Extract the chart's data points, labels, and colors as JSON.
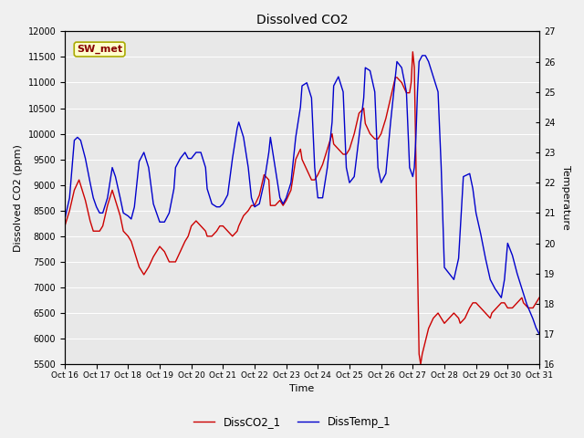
{
  "title": "Dissolved CO2",
  "xlabel": "Time",
  "ylabel_left": "Dissolved CO2 (ppm)",
  "ylabel_right": "Temperature",
  "legend_label": "SW_met",
  "series1_label": "DissCO2_1",
  "series2_label": "DissTemp_1",
  "series1_color": "#cc0000",
  "series2_color": "#0000cc",
  "ylim_left": [
    5500,
    12000
  ],
  "ylim_right": [
    16.0,
    27.0
  ],
  "fig_facecolor": "#f0f0f0",
  "ax_facecolor": "#e8e8e8",
  "legend_box_facecolor": "#ffffcc",
  "legend_box_edgecolor": "#aaaa00",
  "legend_text_color": "#880000",
  "yticks_left": [
    5500,
    6000,
    6500,
    7000,
    7500,
    8000,
    8500,
    9000,
    9500,
    10000,
    10500,
    11000,
    11500,
    12000
  ],
  "yticks_right": [
    16.0,
    17.0,
    18.0,
    19.0,
    20.0,
    21.0,
    22.0,
    23.0,
    24.0,
    25.0,
    26.0,
    27.0
  ],
  "xtick_positions": [
    0,
    1,
    2,
    3,
    4,
    5,
    6,
    7,
    8,
    9,
    10,
    11,
    12,
    13,
    14,
    15
  ],
  "xtick_labels": [
    "Oct 16",
    "Oct 17",
    "Oct 18",
    "Oct 19",
    "Oct 20",
    "Oct 21",
    "Oct 22",
    "Oct 23",
    "Oct 24",
    "Oct 25",
    "Oct 26",
    "Oct 27",
    "Oct 28",
    "Oct 29",
    "Oct 30",
    "Oct 31"
  ],
  "co2_x": [
    0.0,
    0.15,
    0.3,
    0.45,
    0.5,
    0.65,
    0.8,
    0.9,
    1.0,
    1.1,
    1.2,
    1.35,
    1.5,
    1.6,
    1.75,
    1.85,
    2.0,
    2.1,
    2.2,
    2.35,
    2.5,
    2.65,
    2.8,
    2.9,
    3.0,
    3.15,
    3.3,
    3.45,
    3.5,
    3.65,
    3.8,
    3.9,
    4.0,
    4.15,
    4.3,
    4.45,
    4.5,
    4.65,
    4.8,
    4.9,
    5.0,
    5.15,
    5.3,
    5.45,
    5.5,
    5.65,
    5.8,
    5.9,
    6.0,
    6.15,
    6.3,
    6.45,
    6.5,
    6.65,
    6.8,
    6.9,
    7.0,
    7.15,
    7.3,
    7.45,
    7.5,
    7.65,
    7.8,
    7.9,
    8.0,
    8.15,
    8.3,
    8.45,
    8.5,
    8.65,
    8.8,
    8.9,
    9.0,
    9.15,
    9.3,
    9.45,
    9.5,
    9.65,
    9.8,
    9.9,
    10.0,
    10.15,
    10.3,
    10.45,
    10.5,
    10.65,
    10.8,
    10.9,
    10.95,
    11.0,
    11.05,
    11.1,
    11.15,
    11.2,
    11.25,
    11.3,
    11.5,
    11.65,
    11.8,
    11.9,
    12.0,
    12.15,
    12.3,
    12.45,
    12.5,
    12.65,
    12.8,
    12.9,
    13.0,
    13.15,
    13.3,
    13.45,
    13.5,
    13.65,
    13.8,
    13.9,
    14.0,
    14.15,
    14.3,
    14.45,
    14.5,
    14.65,
    14.8,
    14.9,
    15.0
  ],
  "co2_y": [
    8200,
    8500,
    8900,
    9100,
    9000,
    8700,
    8300,
    8100,
    8100,
    8100,
    8200,
    8600,
    8900,
    8700,
    8400,
    8100,
    8000,
    7900,
    7700,
    7400,
    7250,
    7400,
    7600,
    7700,
    7800,
    7700,
    7500,
    7500,
    7500,
    7700,
    7900,
    8000,
    8200,
    8300,
    8200,
    8100,
    8000,
    8000,
    8100,
    8200,
    8200,
    8100,
    8000,
    8100,
    8200,
    8400,
    8500,
    8600,
    8600,
    8800,
    9200,
    9100,
    8600,
    8600,
    8700,
    8600,
    8700,
    8900,
    9500,
    9700,
    9500,
    9300,
    9100,
    9100,
    9200,
    9400,
    9700,
    10000,
    9800,
    9700,
    9600,
    9600,
    9700,
    10000,
    10400,
    10500,
    10200,
    10000,
    9900,
    9900,
    10000,
    10300,
    10700,
    11100,
    11100,
    11000,
    10800,
    10800,
    11000,
    11600,
    11300,
    9500,
    7500,
    5700,
    5500,
    5700,
    6200,
    6400,
    6500,
    6400,
    6300,
    6400,
    6500,
    6400,
    6300,
    6400,
    6600,
    6700,
    6700,
    6600,
    6500,
    6400,
    6500,
    6600,
    6700,
    6700,
    6600,
    6600,
    6700,
    6800,
    6700,
    6600,
    6600,
    6700,
    6800
  ],
  "temp_x": [
    0.0,
    0.15,
    0.3,
    0.4,
    0.5,
    0.65,
    0.8,
    0.9,
    1.0,
    1.1,
    1.2,
    1.35,
    1.5,
    1.6,
    1.75,
    1.85,
    2.0,
    2.1,
    2.2,
    2.35,
    2.5,
    2.65,
    2.8,
    2.9,
    3.0,
    3.15,
    3.3,
    3.45,
    3.5,
    3.65,
    3.8,
    3.9,
    4.0,
    4.15,
    4.3,
    4.45,
    4.5,
    4.65,
    4.8,
    4.9,
    5.0,
    5.15,
    5.3,
    5.45,
    5.5,
    5.65,
    5.8,
    5.9,
    6.0,
    6.15,
    6.3,
    6.45,
    6.5,
    6.65,
    6.8,
    6.9,
    7.0,
    7.15,
    7.3,
    7.45,
    7.5,
    7.65,
    7.8,
    7.9,
    8.0,
    8.15,
    8.3,
    8.45,
    8.5,
    8.65,
    8.8,
    8.9,
    9.0,
    9.15,
    9.3,
    9.45,
    9.5,
    9.65,
    9.8,
    9.9,
    10.0,
    10.15,
    10.3,
    10.45,
    10.5,
    10.65,
    10.8,
    10.9,
    11.0,
    11.05,
    11.1,
    11.15,
    11.2,
    11.3,
    11.4,
    11.5,
    11.65,
    11.8,
    11.9,
    12.0,
    12.15,
    12.3,
    12.45,
    12.6,
    12.8,
    12.9,
    13.0,
    13.15,
    13.3,
    13.45,
    13.6,
    13.8,
    13.9,
    14.0,
    14.15,
    14.3,
    14.45,
    14.6,
    14.8,
    14.9,
    15.0
  ],
  "temp_y": [
    20.8,
    21.5,
    23.4,
    23.5,
    23.4,
    22.8,
    22.0,
    21.5,
    21.2,
    21.0,
    21.0,
    21.5,
    22.5,
    22.2,
    21.5,
    21.0,
    20.9,
    20.8,
    21.2,
    22.7,
    23.0,
    22.5,
    21.3,
    21.0,
    20.7,
    20.7,
    21.0,
    21.8,
    22.5,
    22.8,
    23.0,
    22.8,
    22.8,
    23.0,
    23.0,
    22.5,
    21.8,
    21.3,
    21.2,
    21.2,
    21.3,
    21.6,
    22.8,
    23.8,
    24.0,
    23.5,
    22.5,
    21.5,
    21.2,
    21.3,
    22.0,
    23.0,
    23.5,
    22.5,
    21.5,
    21.3,
    21.5,
    22.0,
    23.5,
    24.5,
    25.2,
    25.3,
    24.8,
    22.5,
    21.5,
    21.5,
    22.5,
    24.0,
    25.2,
    25.5,
    25.0,
    22.5,
    22.0,
    22.2,
    23.5,
    24.8,
    25.8,
    25.7,
    25.0,
    22.5,
    22.0,
    22.3,
    24.0,
    25.5,
    26.0,
    25.8,
    25.0,
    22.5,
    22.2,
    22.5,
    23.5,
    25.0,
    26.0,
    26.2,
    26.2,
    26.0,
    25.5,
    25.0,
    22.5,
    19.2,
    19.0,
    18.8,
    19.5,
    22.2,
    22.3,
    21.8,
    21.0,
    20.3,
    19.5,
    18.8,
    18.5,
    18.2,
    18.8,
    20.0,
    19.6,
    19.0,
    18.5,
    18.0,
    17.5,
    17.2,
    17.0
  ]
}
